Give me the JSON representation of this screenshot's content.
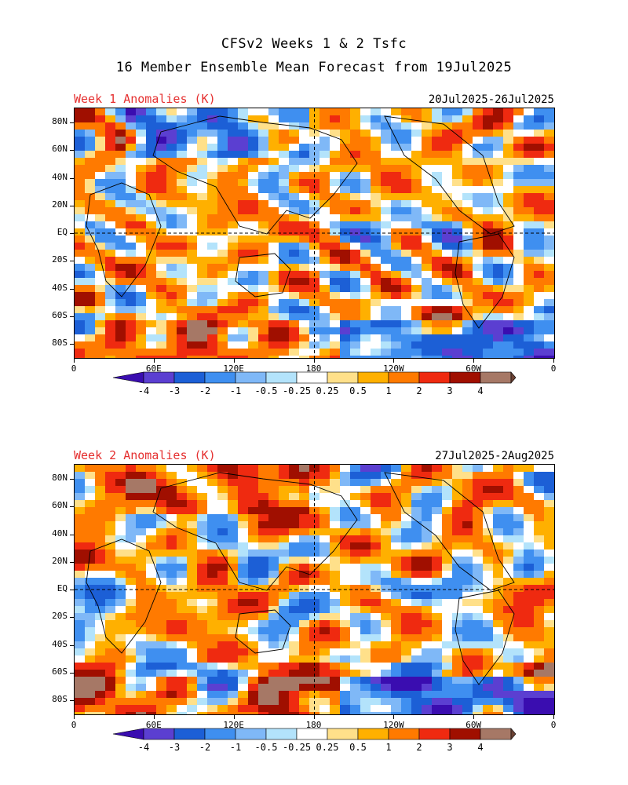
{
  "header": {
    "line1": "CFSv2 Weeks 1 & 2 Tsfc",
    "line2": "16 Member Ensemble Mean Forecast from 19Jul2025"
  },
  "panels": [
    {
      "label": "Week 1 Anomalies (K)",
      "date_range": "20Jul2025-26Jul2025",
      "seed": 11
    },
    {
      "label": "Week 2 Anomalies (K)",
      "date_range": "27Jul2025-2Aug2025",
      "seed": 27
    }
  ],
  "axes": {
    "y_labels": [
      "80N",
      "60N",
      "40N",
      "20N",
      "EQ",
      "20S",
      "40S",
      "60S",
      "80S"
    ],
    "x_labels": [
      "0",
      "60E",
      "120E",
      "180",
      "120W",
      "60W",
      "0"
    ]
  },
  "colorbar": {
    "labels": [
      "-4",
      "-3",
      "-2",
      "-1",
      "-0.5",
      "-0.25",
      "0.25",
      "0.5",
      "1",
      "2",
      "3",
      "4"
    ],
    "colors": [
      "#3a0db0",
      "#5b3fd1",
      "#1c5fd6",
      "#3f8ff0",
      "#7fb8f7",
      "#b3e3fb",
      "#ffffff",
      "#ffe08a",
      "#ffb000",
      "#ff7a00",
      "#ef2a10",
      "#a00f00",
      "#a67866",
      "#6b4233"
    ]
  }
}
